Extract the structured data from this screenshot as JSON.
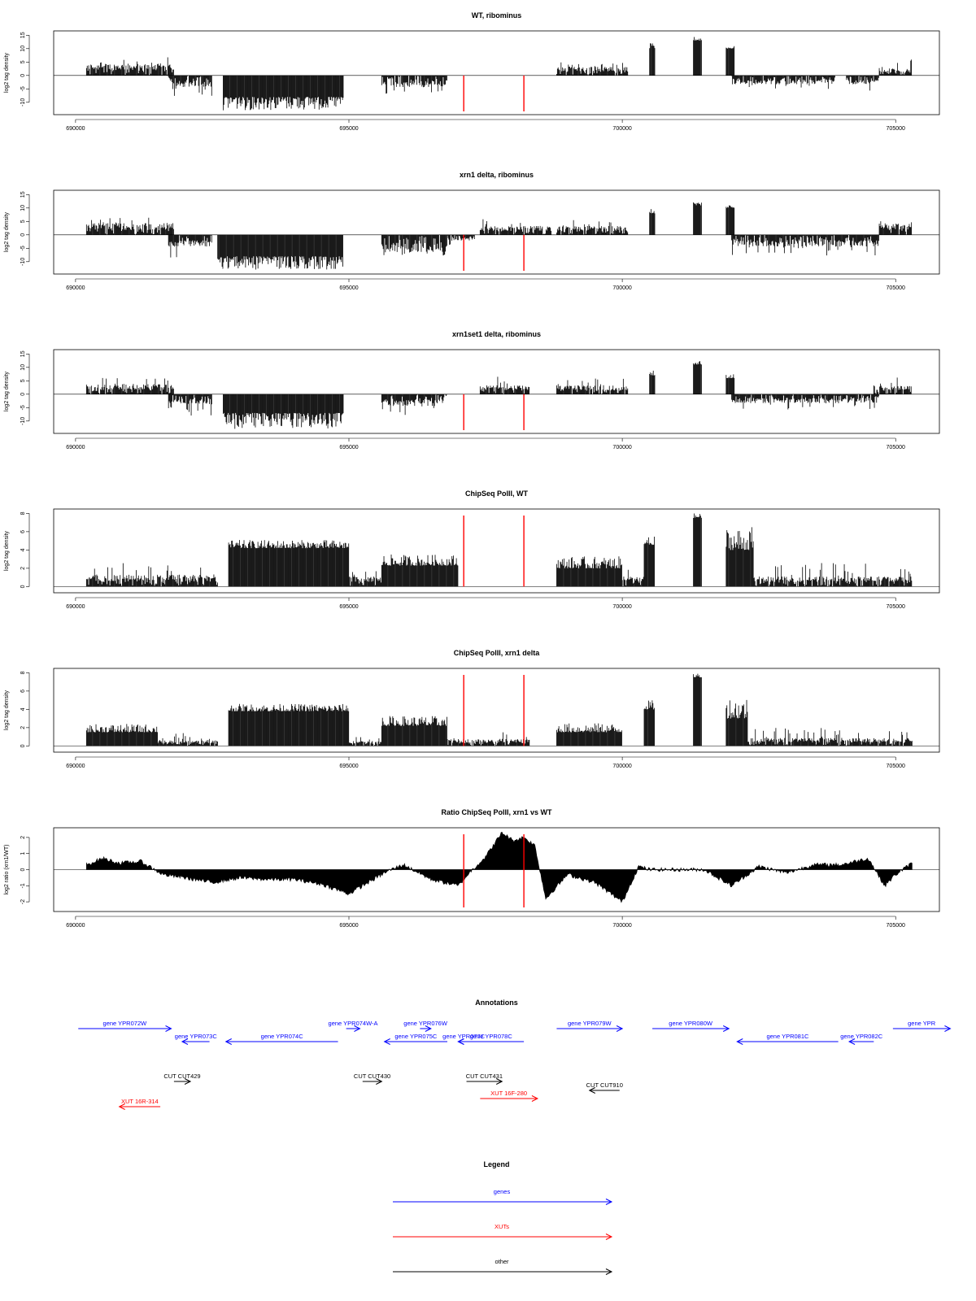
{
  "colors": {
    "gene": "#0000ff",
    "xut": "#ff0000",
    "other": "#000000",
    "marker": "#ff0000",
    "signal": "#000000"
  },
  "chart_data": [
    {
      "type": "bar",
      "title": "WT, ribominus",
      "xlabel": "",
      "ylabel": "log2 tag density",
      "xlim": [
        689600,
        705800
      ],
      "ylim": [
        -14,
        16
      ],
      "yticks": [
        -10,
        -5,
        0,
        5,
        10,
        15
      ],
      "xticks": [
        690000,
        695000,
        700000,
        705000
      ],
      "markers": [
        697100,
        698200
      ],
      "segments": [
        {
          "start": 690200,
          "end": 691800,
          "sign": 1,
          "level": 4,
          "peak": 7,
          "style": "spiky"
        },
        {
          "start": 691700,
          "end": 692500,
          "sign": -1,
          "level": 4,
          "peak": 8,
          "style": "spiky"
        },
        {
          "start": 692700,
          "end": 694900,
          "sign": -1,
          "level": 8,
          "peak": 13,
          "style": "solid"
        },
        {
          "start": 695600,
          "end": 696800,
          "sign": -1,
          "level": 4,
          "peak": 7,
          "style": "spiky"
        },
        {
          "start": 698800,
          "end": 700100,
          "sign": 1,
          "level": 3,
          "peak": 5,
          "style": "spiky"
        },
        {
          "start": 700500,
          "end": 700600,
          "sign": 1,
          "level": 10,
          "peak": 12,
          "style": "solid"
        },
        {
          "start": 701300,
          "end": 701450,
          "sign": 1,
          "level": 13,
          "peak": 14.5,
          "style": "solid"
        },
        {
          "start": 701900,
          "end": 702050,
          "sign": 1,
          "level": 10,
          "peak": 11,
          "style": "solid"
        },
        {
          "start": 702000,
          "end": 703900,
          "sign": -1,
          "level": 3,
          "peak": 5,
          "style": "spiky"
        },
        {
          "start": 704100,
          "end": 704700,
          "sign": -1,
          "level": 3,
          "peak": 6,
          "style": "spiky"
        },
        {
          "start": 704700,
          "end": 705300,
          "sign": 1,
          "level": 2.5,
          "peak": 6,
          "style": "spiky"
        }
      ]
    },
    {
      "type": "bar",
      "title": "xrn1 delta, ribominus",
      "xlabel": "",
      "ylabel": "log2 tag density",
      "xlim": [
        689600,
        705800
      ],
      "ylim": [
        -14,
        16
      ],
      "yticks": [
        -10,
        -5,
        0,
        5,
        10,
        15
      ],
      "xticks": [
        690000,
        695000,
        700000,
        705000
      ],
      "markers": [
        697100,
        698200
      ],
      "segments": [
        {
          "start": 690200,
          "end": 691800,
          "sign": 1,
          "level": 4,
          "peak": 7,
          "style": "spiky"
        },
        {
          "start": 691700,
          "end": 692500,
          "sign": -1,
          "level": 4,
          "peak": 9,
          "style": "spiky"
        },
        {
          "start": 692600,
          "end": 694900,
          "sign": -1,
          "level": 8,
          "peak": 13,
          "style": "solid"
        },
        {
          "start": 695600,
          "end": 696800,
          "sign": -1,
          "level": 6,
          "peak": 8,
          "style": "spiky"
        },
        {
          "start": 696800,
          "end": 697300,
          "sign": -1,
          "level": 2,
          "peak": 4,
          "style": "spiky"
        },
        {
          "start": 697400,
          "end": 698700,
          "sign": 1,
          "level": 3,
          "peak": 6,
          "style": "spiky"
        },
        {
          "start": 698800,
          "end": 700100,
          "sign": 1,
          "level": 3,
          "peak": 6,
          "style": "spiky"
        },
        {
          "start": 700500,
          "end": 700600,
          "sign": 1,
          "level": 8,
          "peak": 10,
          "style": "solid"
        },
        {
          "start": 701300,
          "end": 701450,
          "sign": 1,
          "level": 11,
          "peak": 12.5,
          "style": "solid"
        },
        {
          "start": 701900,
          "end": 702050,
          "sign": 1,
          "level": 10,
          "peak": 11.5,
          "style": "solid"
        },
        {
          "start": 702000,
          "end": 704700,
          "sign": -1,
          "level": 4,
          "peak": 8,
          "style": "spiky"
        },
        {
          "start": 704700,
          "end": 705300,
          "sign": 1,
          "level": 4,
          "peak": 7,
          "style": "spiky"
        }
      ]
    },
    {
      "type": "bar",
      "title": "xrn1set1 delta, ribominus",
      "xlabel": "",
      "ylabel": "log2 tag density",
      "xlim": [
        689600,
        705800
      ],
      "ylim": [
        -14,
        16
      ],
      "yticks": [
        -10,
        -5,
        0,
        5,
        10,
        15
      ],
      "xticks": [
        690000,
        695000,
        700000,
        705000
      ],
      "markers": [
        697100,
        698200
      ],
      "segments": [
        {
          "start": 690200,
          "end": 691800,
          "sign": 1,
          "level": 3.5,
          "peak": 6.5,
          "style": "spiky"
        },
        {
          "start": 691700,
          "end": 692500,
          "sign": -1,
          "level": 3.5,
          "peak": 8,
          "style": "spiky"
        },
        {
          "start": 692700,
          "end": 694900,
          "sign": -1,
          "level": 7,
          "peak": 13,
          "style": "solid"
        },
        {
          "start": 695600,
          "end": 696800,
          "sign": -1,
          "level": 4,
          "peak": 8,
          "style": "spiky"
        },
        {
          "start": 697400,
          "end": 698300,
          "sign": 1,
          "level": 3,
          "peak": 7,
          "style": "spiky"
        },
        {
          "start": 698800,
          "end": 700100,
          "sign": 1,
          "level": 3,
          "peak": 6,
          "style": "spiky"
        },
        {
          "start": 700500,
          "end": 700600,
          "sign": 1,
          "level": 7,
          "peak": 9,
          "style": "solid"
        },
        {
          "start": 701300,
          "end": 701450,
          "sign": 1,
          "level": 11,
          "peak": 12.5,
          "style": "solid"
        },
        {
          "start": 701900,
          "end": 702050,
          "sign": 1,
          "level": 6,
          "peak": 7.5,
          "style": "solid"
        },
        {
          "start": 702000,
          "end": 704700,
          "sign": -1,
          "level": 3,
          "peak": 6,
          "style": "spiky"
        },
        {
          "start": 704600,
          "end": 705300,
          "sign": 1,
          "level": 3,
          "peak": 7,
          "style": "spiky"
        }
      ]
    },
    {
      "type": "bar",
      "title": "ChipSeq PolII, WT",
      "xlabel": "",
      "ylabel": "log2 tag density",
      "xlim": [
        689600,
        705800
      ],
      "ylim": [
        -0.5,
        8.3
      ],
      "yticks": [
        0,
        2,
        4,
        6,
        8
      ],
      "xticks": [
        690000,
        695000,
        700000,
        705000
      ],
      "markers": [
        697100,
        698200
      ],
      "segments": [
        {
          "start": 690200,
          "end": 692600,
          "sign": 1,
          "level": 1.2,
          "peak": 2.6,
          "style": "spiky"
        },
        {
          "start": 692800,
          "end": 695000,
          "sign": 1,
          "level": 4.2,
          "peak": 5.1,
          "style": "solid"
        },
        {
          "start": 695000,
          "end": 695600,
          "sign": 1,
          "level": 1,
          "peak": 2,
          "style": "spiky"
        },
        {
          "start": 695600,
          "end": 697000,
          "sign": 1,
          "level": 2.3,
          "peak": 3.5,
          "style": "solid"
        },
        {
          "start": 698800,
          "end": 700000,
          "sign": 1,
          "level": 2,
          "peak": 3.3,
          "style": "solid"
        },
        {
          "start": 700000,
          "end": 700400,
          "sign": 1,
          "level": 1,
          "peak": 2,
          "style": "spiky"
        },
        {
          "start": 700400,
          "end": 700600,
          "sign": 1,
          "level": 4.5,
          "peak": 5.5,
          "style": "solid"
        },
        {
          "start": 701300,
          "end": 701450,
          "sign": 1,
          "level": 7.5,
          "peak": 8,
          "style": "solid"
        },
        {
          "start": 701900,
          "end": 702400,
          "sign": 1,
          "level": 4,
          "peak": 6.5,
          "style": "solid"
        },
        {
          "start": 702400,
          "end": 705300,
          "sign": 1,
          "level": 1,
          "peak": 2.6,
          "style": "spiky"
        }
      ]
    },
    {
      "type": "bar",
      "title": "ChipSeq PolII, xrn1 delta",
      "xlabel": "",
      "ylabel": "log2 tag density",
      "xlim": [
        689600,
        705800
      ],
      "ylim": [
        -0.5,
        8.3
      ],
      "yticks": [
        0,
        2,
        4,
        6,
        8
      ],
      "xticks": [
        690000,
        695000,
        700000,
        705000
      ],
      "markers": [
        697100,
        698200
      ],
      "segments": [
        {
          "start": 690200,
          "end": 691500,
          "sign": 1,
          "level": 1.5,
          "peak": 2.4,
          "style": "solid"
        },
        {
          "start": 691500,
          "end": 692600,
          "sign": 1,
          "level": 0.6,
          "peak": 1.5,
          "style": "spiky"
        },
        {
          "start": 692800,
          "end": 695000,
          "sign": 1,
          "level": 3.8,
          "peak": 4.6,
          "style": "solid"
        },
        {
          "start": 695000,
          "end": 695600,
          "sign": 1,
          "level": 0.5,
          "peak": 1,
          "style": "spiky"
        },
        {
          "start": 695600,
          "end": 696800,
          "sign": 1,
          "level": 2.2,
          "peak": 3.3,
          "style": "solid"
        },
        {
          "start": 696800,
          "end": 698300,
          "sign": 1,
          "level": 0.7,
          "peak": 1.6,
          "style": "spiky"
        },
        {
          "start": 698800,
          "end": 700000,
          "sign": 1,
          "level": 1.5,
          "peak": 2.5,
          "style": "solid"
        },
        {
          "start": 700400,
          "end": 700600,
          "sign": 1,
          "level": 4,
          "peak": 5,
          "style": "solid"
        },
        {
          "start": 701300,
          "end": 701450,
          "sign": 1,
          "level": 7.5,
          "peak": 8,
          "style": "solid"
        },
        {
          "start": 701900,
          "end": 702300,
          "sign": 1,
          "level": 3,
          "peak": 5.5,
          "style": "solid"
        },
        {
          "start": 702300,
          "end": 705300,
          "sign": 1,
          "level": 0.8,
          "peak": 2,
          "style": "spiky"
        }
      ]
    },
    {
      "type": "area",
      "title": "Ratio ChipSeq PolII, xrn1 vs WT",
      "xlabel": "",
      "ylabel": "log2 ratio (xrn1/WT)",
      "xlim": [
        689600,
        705800
      ],
      "ylim": [
        -2.5,
        2.5
      ],
      "yticks": [
        -2,
        -1,
        0,
        1,
        2
      ],
      "xticks": [
        690000,
        695000,
        700000,
        705000
      ],
      "markers": [
        697100,
        698200
      ],
      "x": [
        690200,
        690500,
        690800,
        691200,
        691600,
        692000,
        692500,
        693000,
        693500,
        694000,
        694500,
        695000,
        695300,
        695700,
        696000,
        696500,
        697000,
        697200,
        697500,
        697800,
        698000,
        698200,
        698400,
        698600,
        699000,
        699500,
        700000,
        700300,
        700500,
        701000,
        701500,
        702000,
        702500,
        703000,
        703500,
        704000,
        704500,
        704800,
        705000,
        705300
      ],
      "y": [
        0.3,
        0.7,
        0.4,
        0.5,
        -0.3,
        -0.5,
        -0.8,
        -0.5,
        -0.6,
        -0.6,
        -0.9,
        -1.5,
        -0.9,
        -0.1,
        0.3,
        -0.6,
        -1.0,
        -0.2,
        0.8,
        2.3,
        1.8,
        2.0,
        1.5,
        -1.8,
        -0.3,
        -0.8,
        -2.0,
        0.2,
        0.0,
        0.0,
        0.0,
        -1.0,
        0.2,
        -0.2,
        0.3,
        0.3,
        0.7,
        -1.0,
        -0.3,
        0.4
      ]
    }
  ],
  "annotations": {
    "title": "Annotations",
    "items": [
      {
        "label": "gene YPR072W",
        "start": 690050,
        "end": 691750,
        "dir": ">",
        "row": 0,
        "kind": "gene"
      },
      {
        "label": "gene YPR073C",
        "start": 691950,
        "end": 692450,
        "dir": "<",
        "row": 1,
        "kind": "gene"
      },
      {
        "label": "gene YPR074C",
        "start": 692750,
        "end": 694800,
        "dir": "<",
        "row": 1,
        "kind": "gene"
      },
      {
        "label": "gene YPR074W-A",
        "start": 694950,
        "end": 695200,
        "dir": ">",
        "row": 0,
        "kind": "gene"
      },
      {
        "label": "gene YPR075C",
        "start": 695650,
        "end": 696800,
        "dir": "<",
        "row": 1,
        "kind": "gene"
      },
      {
        "label": "gene YPR076W",
        "start": 696300,
        "end": 696500,
        "dir": ">",
        "row": 0,
        "kind": "gene"
      },
      {
        "label": "gene YPR077C",
        "start": 697000,
        "end": 697200,
        "dir": "<",
        "row": 1,
        "kind": "gene"
      },
      {
        "label": "gene YPR078C",
        "start": 697000,
        "end": 698200,
        "dir": "<",
        "row": 1,
        "kind": "gene"
      },
      {
        "label": "gene YPR079W",
        "start": 698800,
        "end": 700000,
        "dir": ">",
        "row": 0,
        "kind": "gene"
      },
      {
        "label": "gene YPR080W",
        "start": 700550,
        "end": 701950,
        "dir": ">",
        "row": 0,
        "kind": "gene"
      },
      {
        "label": "gene YPR081C",
        "start": 702100,
        "end": 703950,
        "dir": "<",
        "row": 1,
        "kind": "gene"
      },
      {
        "label": "gene YPR082C",
        "start": 704150,
        "end": 704600,
        "dir": "<",
        "row": 1,
        "kind": "gene"
      },
      {
        "label": "gene YPR",
        "start": 704950,
        "end": 706000,
        "dir": ">",
        "row": 0,
        "kind": "gene"
      },
      {
        "label": "CUT CUT429",
        "start": 691800,
        "end": 692100,
        "dir": ">",
        "row": 3,
        "kind": "other"
      },
      {
        "label": "CUT CUT430",
        "start": 695250,
        "end": 695600,
        "dir": ">",
        "row": 3,
        "kind": "other"
      },
      {
        "label": "CUT CUT431",
        "start": 697150,
        "end": 697800,
        "dir": ">",
        "row": 3,
        "kind": "other"
      },
      {
        "label": "CUT CUT910",
        "start": 699400,
        "end": 699950,
        "dir": "<",
        "row": 4,
        "kind": "other"
      },
      {
        "label": "XUT 16F-280",
        "start": 697400,
        "end": 698450,
        "dir": ">",
        "row": 5,
        "kind": "xut"
      },
      {
        "label": "XUT 16R-314",
        "start": 690800,
        "end": 691550,
        "dir": "<",
        "row": 6,
        "kind": "xut"
      }
    ]
  },
  "legend": {
    "title": "Legend",
    "entries": [
      {
        "label": "genes",
        "kind": "gene"
      },
      {
        "label": "XUTs",
        "kind": "xut"
      },
      {
        "label": "other",
        "kind": "other"
      }
    ]
  }
}
